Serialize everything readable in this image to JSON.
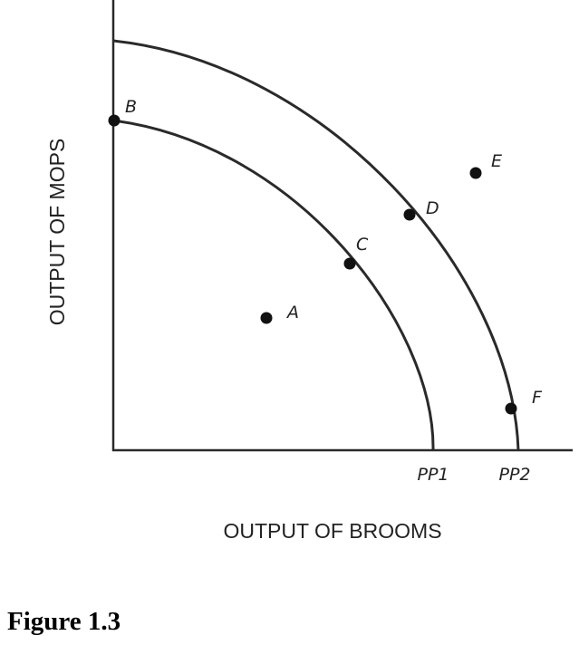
{
  "diagram": {
    "type": "production-possibilities-frontier",
    "x_axis_label": "OUTPUT OF BROOMS",
    "y_axis_label": "OUTPUT OF MOPS",
    "curves": [
      {
        "label": "PP1"
      },
      {
        "label": "PP2"
      }
    ],
    "points": [
      {
        "label": "A",
        "location": "inside PP1"
      },
      {
        "label": "B",
        "location": "on PP1, y-axis intercept"
      },
      {
        "label": "C",
        "location": "on PP1"
      },
      {
        "label": "D",
        "location": "on PP2"
      },
      {
        "label": "E",
        "location": "outside PP2"
      },
      {
        "label": "F",
        "location": "on PP2"
      }
    ],
    "caption": "Figure 1.3",
    "line_color": "#2a2a2a"
  }
}
